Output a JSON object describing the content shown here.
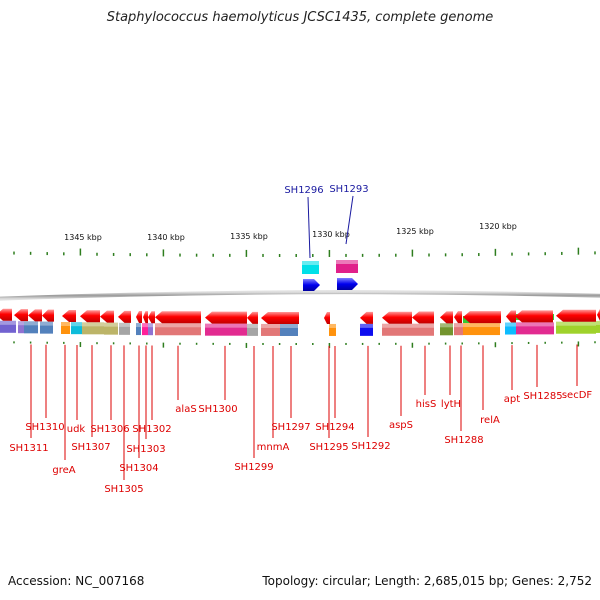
{
  "title": "Staphylococcus haemolyticus JCSC1435, complete genome",
  "footer": {
    "accession": "Accession: NC_007168",
    "stats": "Topology: circular; Length: 2,685,015 bp; Genes: 2,752"
  },
  "colors": {
    "forward_label": "#1a1aa0",
    "reverse_label": "#dd0000",
    "backbone": "#808080",
    "tick": "#2e7d1e"
  },
  "scale_labels": [
    "1345 kbp",
    "1340 kbp",
    "1335 kbp",
    "1330 kbp",
    "1325 kbp",
    "1320 kbp"
  ],
  "forward_genes": [
    "SH1296",
    "SH1293"
  ],
  "reverse_genes": [
    "SH1311",
    "SH1310",
    "greA",
    "udk",
    "SH1307",
    "SH1306",
    "SH1305",
    "SH1304",
    "SH1303",
    "SH1302",
    "alaS",
    "SH1300",
    "SH1299",
    "mnmA",
    "SH1297",
    "SH1295",
    "SH1294",
    "SH1292",
    "aspS",
    "hisS",
    "lytH",
    "SH1288",
    "relA",
    "apt",
    "SH1285",
    "secDF"
  ]
}
